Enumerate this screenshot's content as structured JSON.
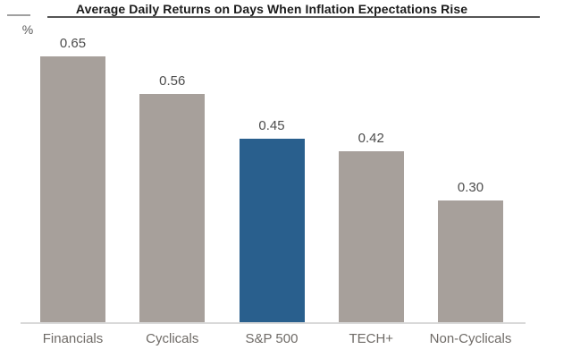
{
  "chart_data": {
    "type": "bar",
    "title": "Average Daily Returns on Days When Inflation Expectations Rise",
    "ylabel": "%",
    "xlabel": "",
    "categories": [
      "Financials",
      "Cyclicals",
      "S&P 500",
      "TECH+",
      "Non-Cyclicals"
    ],
    "values": [
      0.65,
      0.56,
      0.45,
      0.42,
      0.3
    ],
    "value_labels": [
      "0.65",
      "0.56",
      "0.45",
      "0.42",
      "0.30"
    ],
    "highlight_category": "S&P 500",
    "ylim": [
      0,
      0.7
    ],
    "grid": false,
    "legend": "none",
    "value_labels_position": "above-bars",
    "colors": {
      "bar_default": "#a7a09b",
      "bar_highlight": "#295f8d",
      "title_text": "#1b1b1b",
      "title_rule": "#555555",
      "unit_rule": "#a0a0a0",
      "unit_label": "#5a5a5a",
      "value_label": "#4d4d4d",
      "category_label": "#6f6b67",
      "axis_line": "#d9d9d9"
    }
  }
}
